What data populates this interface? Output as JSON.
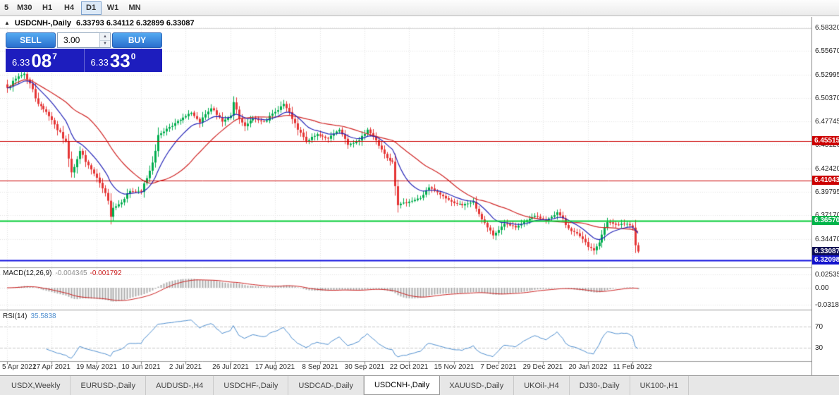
{
  "toolbar": {
    "timeframes": [
      {
        "label": "5",
        "active": false
      },
      {
        "label": "M30",
        "active": false
      },
      {
        "label": "H1",
        "active": false
      },
      {
        "label": "H4",
        "active": false
      },
      {
        "label": "D1",
        "active": true
      },
      {
        "label": "W1",
        "active": false
      },
      {
        "label": "MN",
        "active": false
      }
    ]
  },
  "chart": {
    "title": {
      "collapse_icon": "▲",
      "symbol": "USDCNH-,Daily",
      "ohlc": "6.33793 6.34112 6.32899 6.33087"
    },
    "trade_panel": {
      "sell_label": "SELL",
      "buy_label": "BUY",
      "volume": "3.00",
      "spin_up_icon": "▲",
      "spin_down_icon": "▼",
      "sell_price": {
        "prefix": "6.33",
        "big": "08",
        "sup": "7"
      },
      "buy_price": {
        "prefix": "6.33",
        "big": "33",
        "sup": "0"
      }
    }
  },
  "indicators": {
    "macd_name": "MACD(12,26,9)",
    "macd_value": "-0.004345",
    "macd_signal": "-0.001792",
    "rsi_name": "RSI(14)",
    "rsi_value": "35.5838"
  },
  "price_axis": {
    "ticks": [
      "6.58320",
      "6.55670",
      "6.52995",
      "6.50370",
      "6.47745",
      "6.45120",
      "6.42420",
      "6.39795",
      "6.37170",
      "6.34470"
    ],
    "badges": [
      {
        "text": "6.45515",
        "color": "#cc0000",
        "name": "resistance-line-badge-1"
      },
      {
        "text": "6.41043",
        "color": "#cc0000",
        "name": "resistance-line-badge-2"
      },
      {
        "text": "6.36570",
        "color": "#00b44a",
        "name": "support-line-badge"
      },
      {
        "text": "6.33087",
        "color": "#0d0d55",
        "name": "current-price-badge"
      },
      {
        "text": "6.32098",
        "color": "#1212cc",
        "name": "lower-line-badge"
      }
    ]
  },
  "macd_axis": [
    {
      "text": "0.02535",
      "value": 0.02535
    },
    {
      "text": "0.00",
      "value": 0
    },
    {
      "text": "-0.03183",
      "value": -0.03183
    }
  ],
  "rsi_axis": [
    {
      "text": "70",
      "value": 70
    },
    {
      "text": "30",
      "value": 30
    }
  ],
  "tabs": [
    {
      "label": "USDX,Weekly",
      "active": false
    },
    {
      "label": "EURUSD-,Daily",
      "active": false
    },
    {
      "label": "AUDUSD-,H4",
      "active": false
    },
    {
      "label": "USDCHF-,Daily",
      "active": false
    },
    {
      "label": "USDCAD-,Daily",
      "active": false
    },
    {
      "label": "USDCNH-,Daily",
      "active": true
    },
    {
      "label": "XAUUSD-,Daily",
      "active": false
    },
    {
      "label": "UKOil-,H4",
      "active": false
    },
    {
      "label": "DJ30-,Daily",
      "active": false
    },
    {
      "label": "UK100-,H1",
      "active": false
    }
  ],
  "chart_data": {
    "type": "candlestick",
    "symbol": "USDCNH-",
    "timeframe": "Daily",
    "title": "USDCNH-,Daily",
    "bars": 227,
    "bars_per_tick": 16,
    "x_tick_labels": [
      "5 Apr 2021",
      "27 Apr 2021",
      "19 May 2021",
      "10 Jun 2021",
      "2 Jul 2021",
      "26 Jul 2021",
      "17 Aug 2021",
      "8 Sep 2021",
      "30 Sep 2021",
      "22 Oct 2021",
      "15 Nov 2021",
      "7 Dec 2021",
      "29 Dec 2021",
      "20 Jan 2022",
      "11 Feb 2022"
    ],
    "y_axis": {
      "min": 6.3138,
      "max": 6.5838
    },
    "price_anchors": [
      [
        0,
        6.515
      ],
      [
        4,
        6.528
      ],
      [
        6,
        6.531
      ],
      [
        8,
        6.52
      ],
      [
        11,
        6.497
      ],
      [
        14,
        6.488
      ],
      [
        16,
        6.479
      ],
      [
        20,
        6.458
      ],
      [
        21,
        6.455
      ],
      [
        23,
        6.42
      ],
      [
        26,
        6.444
      ],
      [
        29,
        6.428
      ],
      [
        33,
        6.408
      ],
      [
        36,
        6.388
      ],
      [
        37,
        6.37
      ],
      [
        38,
        6.38
      ],
      [
        40,
        6.384
      ],
      [
        44,
        6.399
      ],
      [
        48,
        6.398
      ],
      [
        52,
        6.431
      ],
      [
        54,
        6.462
      ],
      [
        58,
        6.471
      ],
      [
        62,
        6.479
      ],
      [
        66,
        6.487
      ],
      [
        69,
        6.476
      ],
      [
        73,
        6.492
      ],
      [
        77,
        6.477
      ],
      [
        80,
        6.484
      ],
      [
        81,
        6.499
      ],
      [
        83,
        6.48
      ],
      [
        85,
        6.472
      ],
      [
        88,
        6.481
      ],
      [
        92,
        6.477
      ],
      [
        96,
        6.488
      ],
      [
        99,
        6.497
      ],
      [
        102,
        6.48
      ],
      [
        104,
        6.468
      ],
      [
        107,
        6.455
      ],
      [
        111,
        6.463
      ],
      [
        115,
        6.458
      ],
      [
        119,
        6.468
      ],
      [
        122,
        6.451
      ],
      [
        126,
        6.456
      ],
      [
        129,
        6.468
      ],
      [
        132,
        6.456
      ],
      [
        136,
        6.436
      ],
      [
        138,
        6.432
      ],
      [
        140,
        6.383
      ],
      [
        144,
        6.387
      ],
      [
        148,
        6.391
      ],
      [
        151,
        6.403
      ],
      [
        155,
        6.395
      ],
      [
        159,
        6.387
      ],
      [
        163,
        6.383
      ],
      [
        167,
        6.387
      ],
      [
        170,
        6.367
      ],
      [
        172,
        6.358
      ],
      [
        174,
        6.349
      ],
      [
        178,
        6.362
      ],
      [
        182,
        6.358
      ],
      [
        186,
        6.366
      ],
      [
        189,
        6.371
      ],
      [
        193,
        6.366
      ],
      [
        197,
        6.375
      ],
      [
        201,
        6.357
      ],
      [
        205,
        6.348
      ],
      [
        208,
        6.336
      ],
      [
        210,
        6.332
      ],
      [
        212,
        6.341
      ],
      [
        215,
        6.364
      ],
      [
        218,
        6.361
      ],
      [
        222,
        6.362
      ],
      [
        224,
        6.358
      ],
      [
        225,
        6.33793
      ],
      [
        226,
        6.33087
      ]
    ],
    "last_bar": {
      "open": 6.33793,
      "high": 6.34112,
      "low": 6.32899,
      "close": 6.33087
    },
    "h_lines": [
      {
        "price": 6.45515,
        "color": "#cc0000",
        "width": 1
      },
      {
        "price": 6.41043,
        "color": "#cc0000",
        "width": 1
      },
      {
        "price": 6.3657,
        "color": "#00cc33",
        "width": 2
      },
      {
        "price": 6.32098,
        "color": "#1212e0",
        "width": 2
      }
    ],
    "current_price": 6.33087,
    "ma_lines": [
      {
        "kind": "ema",
        "period": 12,
        "color": "#2424b8"
      },
      {
        "kind": "sma",
        "period": 30,
        "color": "#d02424"
      }
    ],
    "macd": {
      "fast": 12,
      "slow": 26,
      "signal": 9,
      "hist_color": "#adadad",
      "signal_color": "#cc2222",
      "last_value": -0.004345,
      "last_signal": -0.001792,
      "axis_levels": [
        0.02535,
        0,
        -0.03183
      ]
    },
    "rsi": {
      "period": 14,
      "color": "#4f8fd0",
      "last_value": 35.5838,
      "levels": [
        70,
        30
      ]
    },
    "candle_up_color": "#00ad4e",
    "candle_down_color": "#e53535",
    "grid_color": "#e4e4e4",
    "seed": 7
  }
}
